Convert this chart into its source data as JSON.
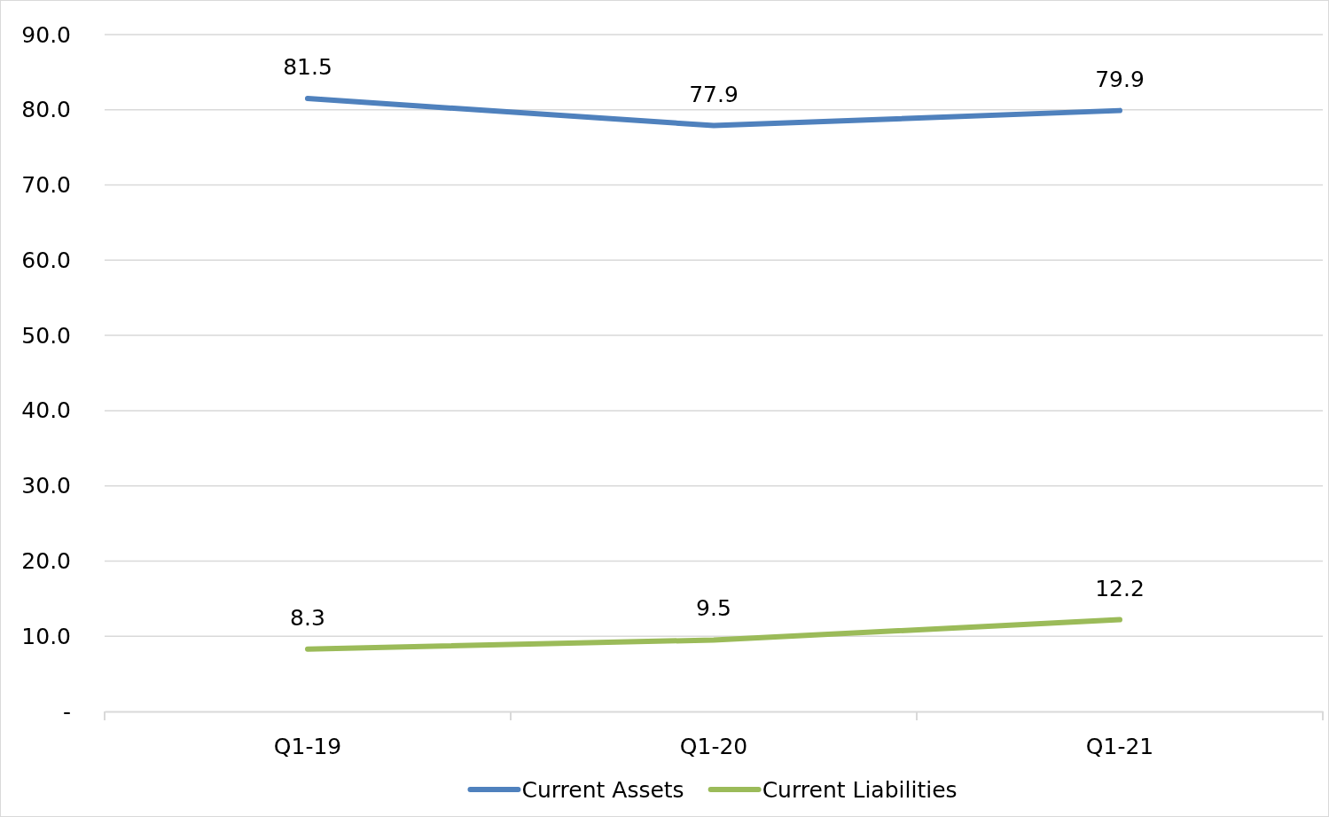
{
  "chart_data": {
    "type": "line",
    "categories": [
      "Q1-19",
      "Q1-20",
      "Q1-21"
    ],
    "series": [
      {
        "name": "Current Assets",
        "color": "#4f81bd",
        "values": [
          81.5,
          77.9,
          79.9
        ]
      },
      {
        "name": "Current Liabilities",
        "color": "#9bbb59",
        "values": [
          8.3,
          9.5,
          12.2
        ]
      }
    ],
    "ylim": [
      0,
      90
    ],
    "yticks": [
      {
        "value": 0,
        "label": "-"
      },
      {
        "value": 10,
        "label": "10.0"
      },
      {
        "value": 20,
        "label": "20.0"
      },
      {
        "value": 30,
        "label": "30.0"
      },
      {
        "value": 40,
        "label": "40.0"
      },
      {
        "value": 50,
        "label": "50.0"
      },
      {
        "value": 60,
        "label": "60.0"
      },
      {
        "value": 70,
        "label": "70.0"
      },
      {
        "value": 80,
        "label": "80.0"
      },
      {
        "value": 90,
        "label": "90.0"
      }
    ],
    "grid": "y",
    "legend": "bottom",
    "data_labels": true,
    "marker": "none",
    "line_style": "solid"
  }
}
